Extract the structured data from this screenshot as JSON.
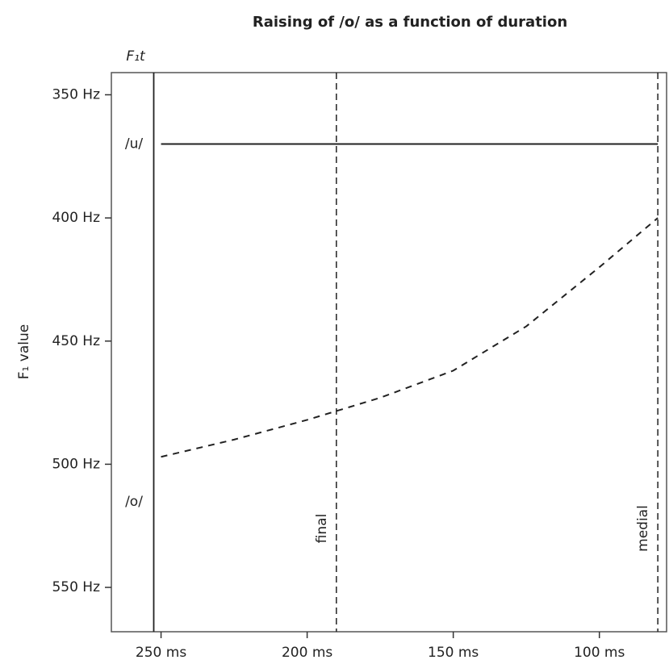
{
  "chart_data": {
    "type": "line",
    "title": "Raising of /o/ as a function of duration",
    "y_label": "F₁ value",
    "boundary_label": "F₁t",
    "boundary_x": 252.5,
    "reference_lines": [
      {
        "x": 190,
        "label": "final"
      },
      {
        "x": 80,
        "label": "medial"
      }
    ],
    "series": [
      {
        "name": "/u/",
        "color": "#222222",
        "dash": false,
        "x": [
          250,
          80
        ],
        "values": [
          370,
          370
        ]
      },
      {
        "name": "/o/",
        "color": "#222222",
        "dash": true,
        "x": [
          250,
          225,
          200,
          175,
          150,
          125,
          100,
          80
        ],
        "values": [
          497,
          490,
          482,
          473,
          462,
          444,
          420,
          400
        ]
      }
    ],
    "xlim": [
      267,
      77
    ],
    "ylim": [
      341,
      568
    ],
    "xticks": [
      {
        "value": 250,
        "label": "250 ms"
      },
      {
        "value": 200,
        "label": "200 ms"
      },
      {
        "value": 150,
        "label": "150 ms"
      },
      {
        "value": 100,
        "label": "100 ms"
      }
    ],
    "yticks": [
      {
        "value": 350,
        "label": "350 Hz"
      },
      {
        "value": 400,
        "label": "400 Hz"
      },
      {
        "value": 450,
        "label": "450 Hz"
      },
      {
        "value": 500,
        "label": "500 Hz"
      },
      {
        "value": 550,
        "label": "550 Hz"
      }
    ]
  }
}
